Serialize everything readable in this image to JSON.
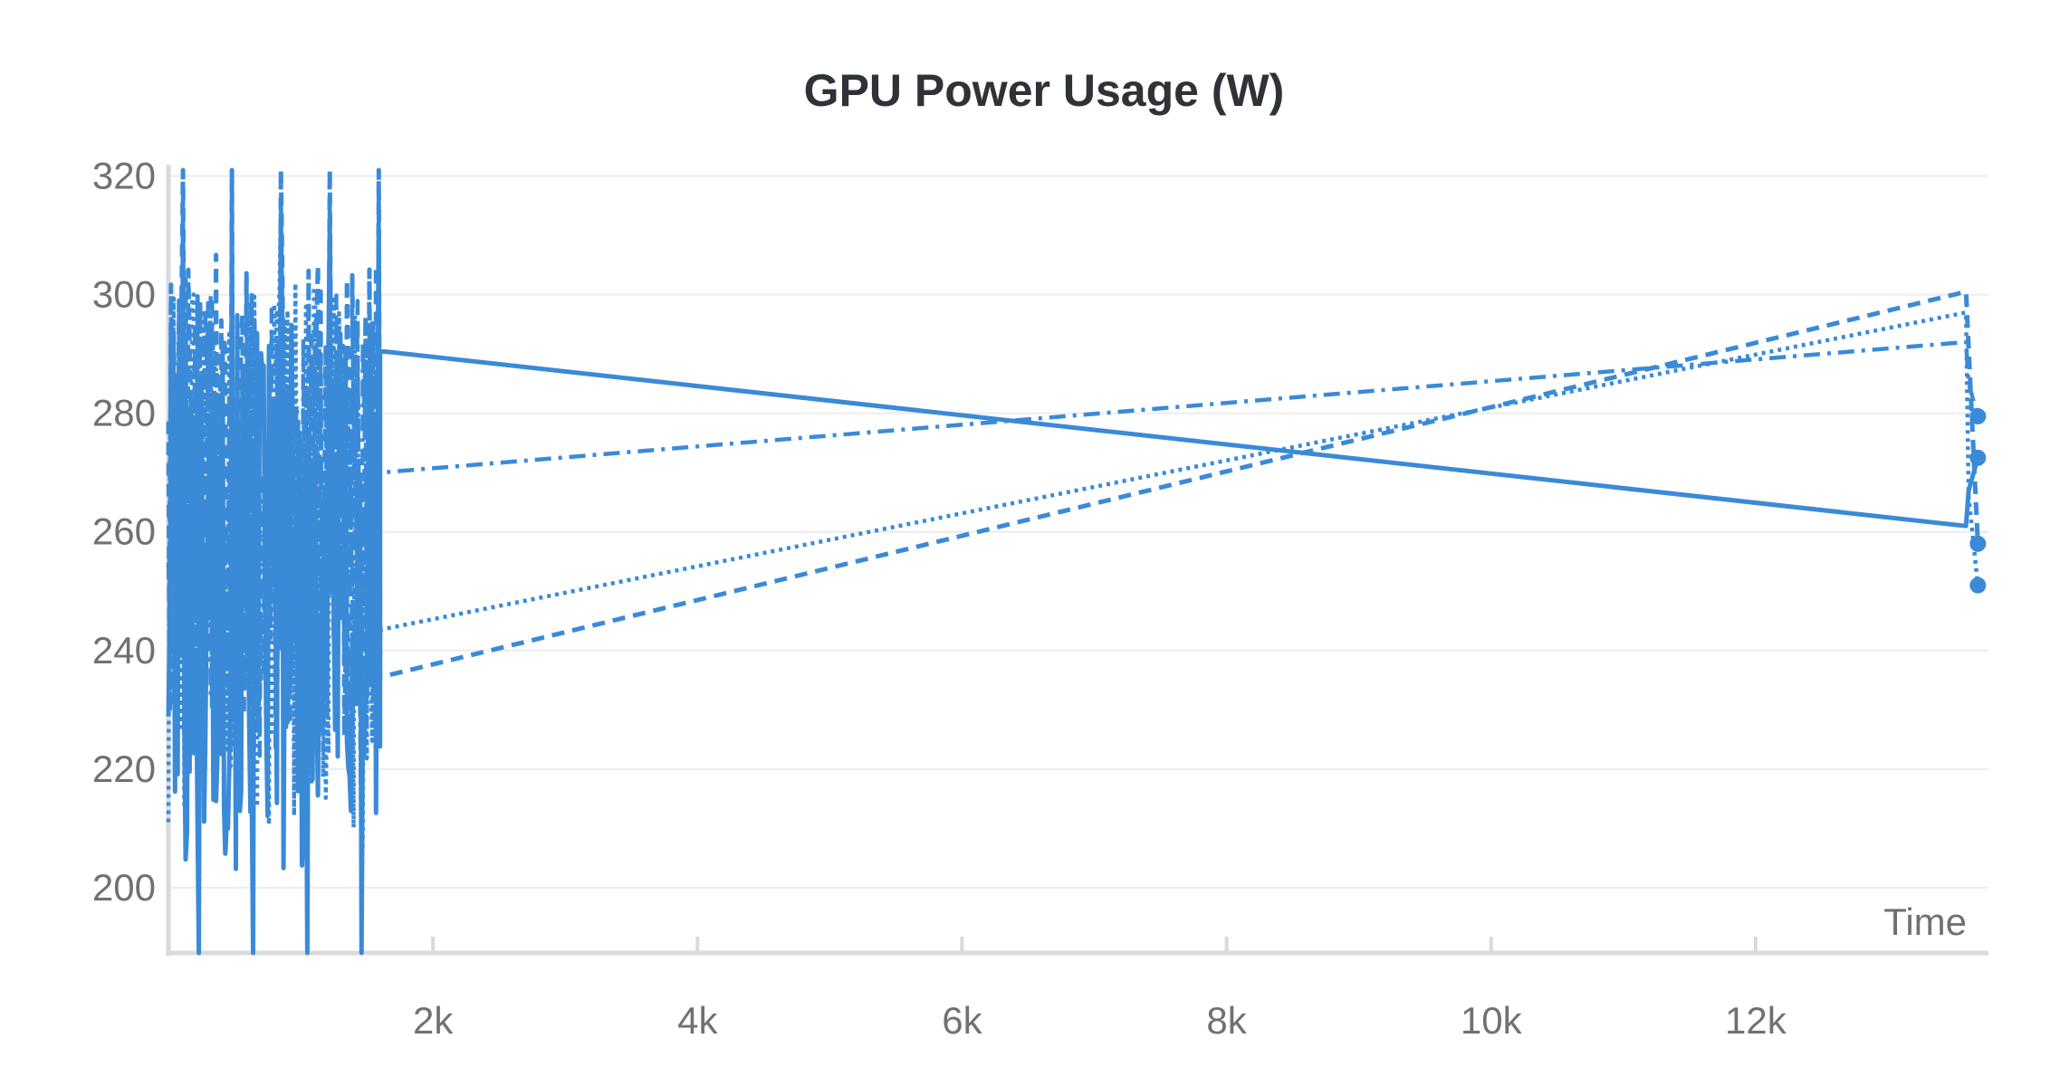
{
  "chart_data": {
    "type": "line",
    "title": "GPU Power Usage (W)",
    "xlabel": "Time",
    "ylabel": "",
    "xlim": [
      0,
      13760
    ],
    "ylim": [
      189,
      321
    ],
    "x_ticks": [
      2000,
      4000,
      6000,
      8000,
      10000,
      12000
    ],
    "x_tick_labels": [
      "2k",
      "4k",
      "6k",
      "8k",
      "10k",
      "12k"
    ],
    "y_ticks": [
      200,
      220,
      240,
      260,
      280,
      300,
      320
    ],
    "y_tick_labels": [
      "200",
      "220",
      "240",
      "260",
      "280",
      "300",
      "320"
    ],
    "grid": true,
    "legend": false,
    "line_color": "#3a8ad8",
    "series": [
      {
        "style": "solid",
        "noise_range": [
          0,
          1600
        ],
        "noise_low": 189,
        "noise_high": 311,
        "points": [
          [
            1600,
            290.5
          ],
          [
            13590,
            261
          ],
          [
            13610,
            267
          ],
          [
            13680,
            272.5
          ]
        ]
      },
      {
        "style": "dashed",
        "noise_range": [
          0,
          1600
        ],
        "noise_low": 211,
        "noise_high": 321,
        "points": [
          [
            1600,
            235.5
          ],
          [
            13590,
            300.5
          ],
          [
            13610,
            291
          ],
          [
            13680,
            258
          ]
        ]
      },
      {
        "style": "dotted",
        "noise_range": [
          0,
          1600
        ],
        "noise_low": 194,
        "noise_high": 316,
        "points": [
          [
            1600,
            243.5
          ],
          [
            13590,
            297
          ],
          [
            13610,
            266
          ],
          [
            13680,
            251
          ]
        ]
      },
      {
        "style": "dashdot",
        "noise_range": [
          0,
          1600
        ],
        "noise_low": 208,
        "noise_high": 316,
        "points": [
          [
            1600,
            270
          ],
          [
            13590,
            292
          ],
          [
            13610,
            285
          ],
          [
            13680,
            279.5
          ]
        ]
      }
    ]
  }
}
